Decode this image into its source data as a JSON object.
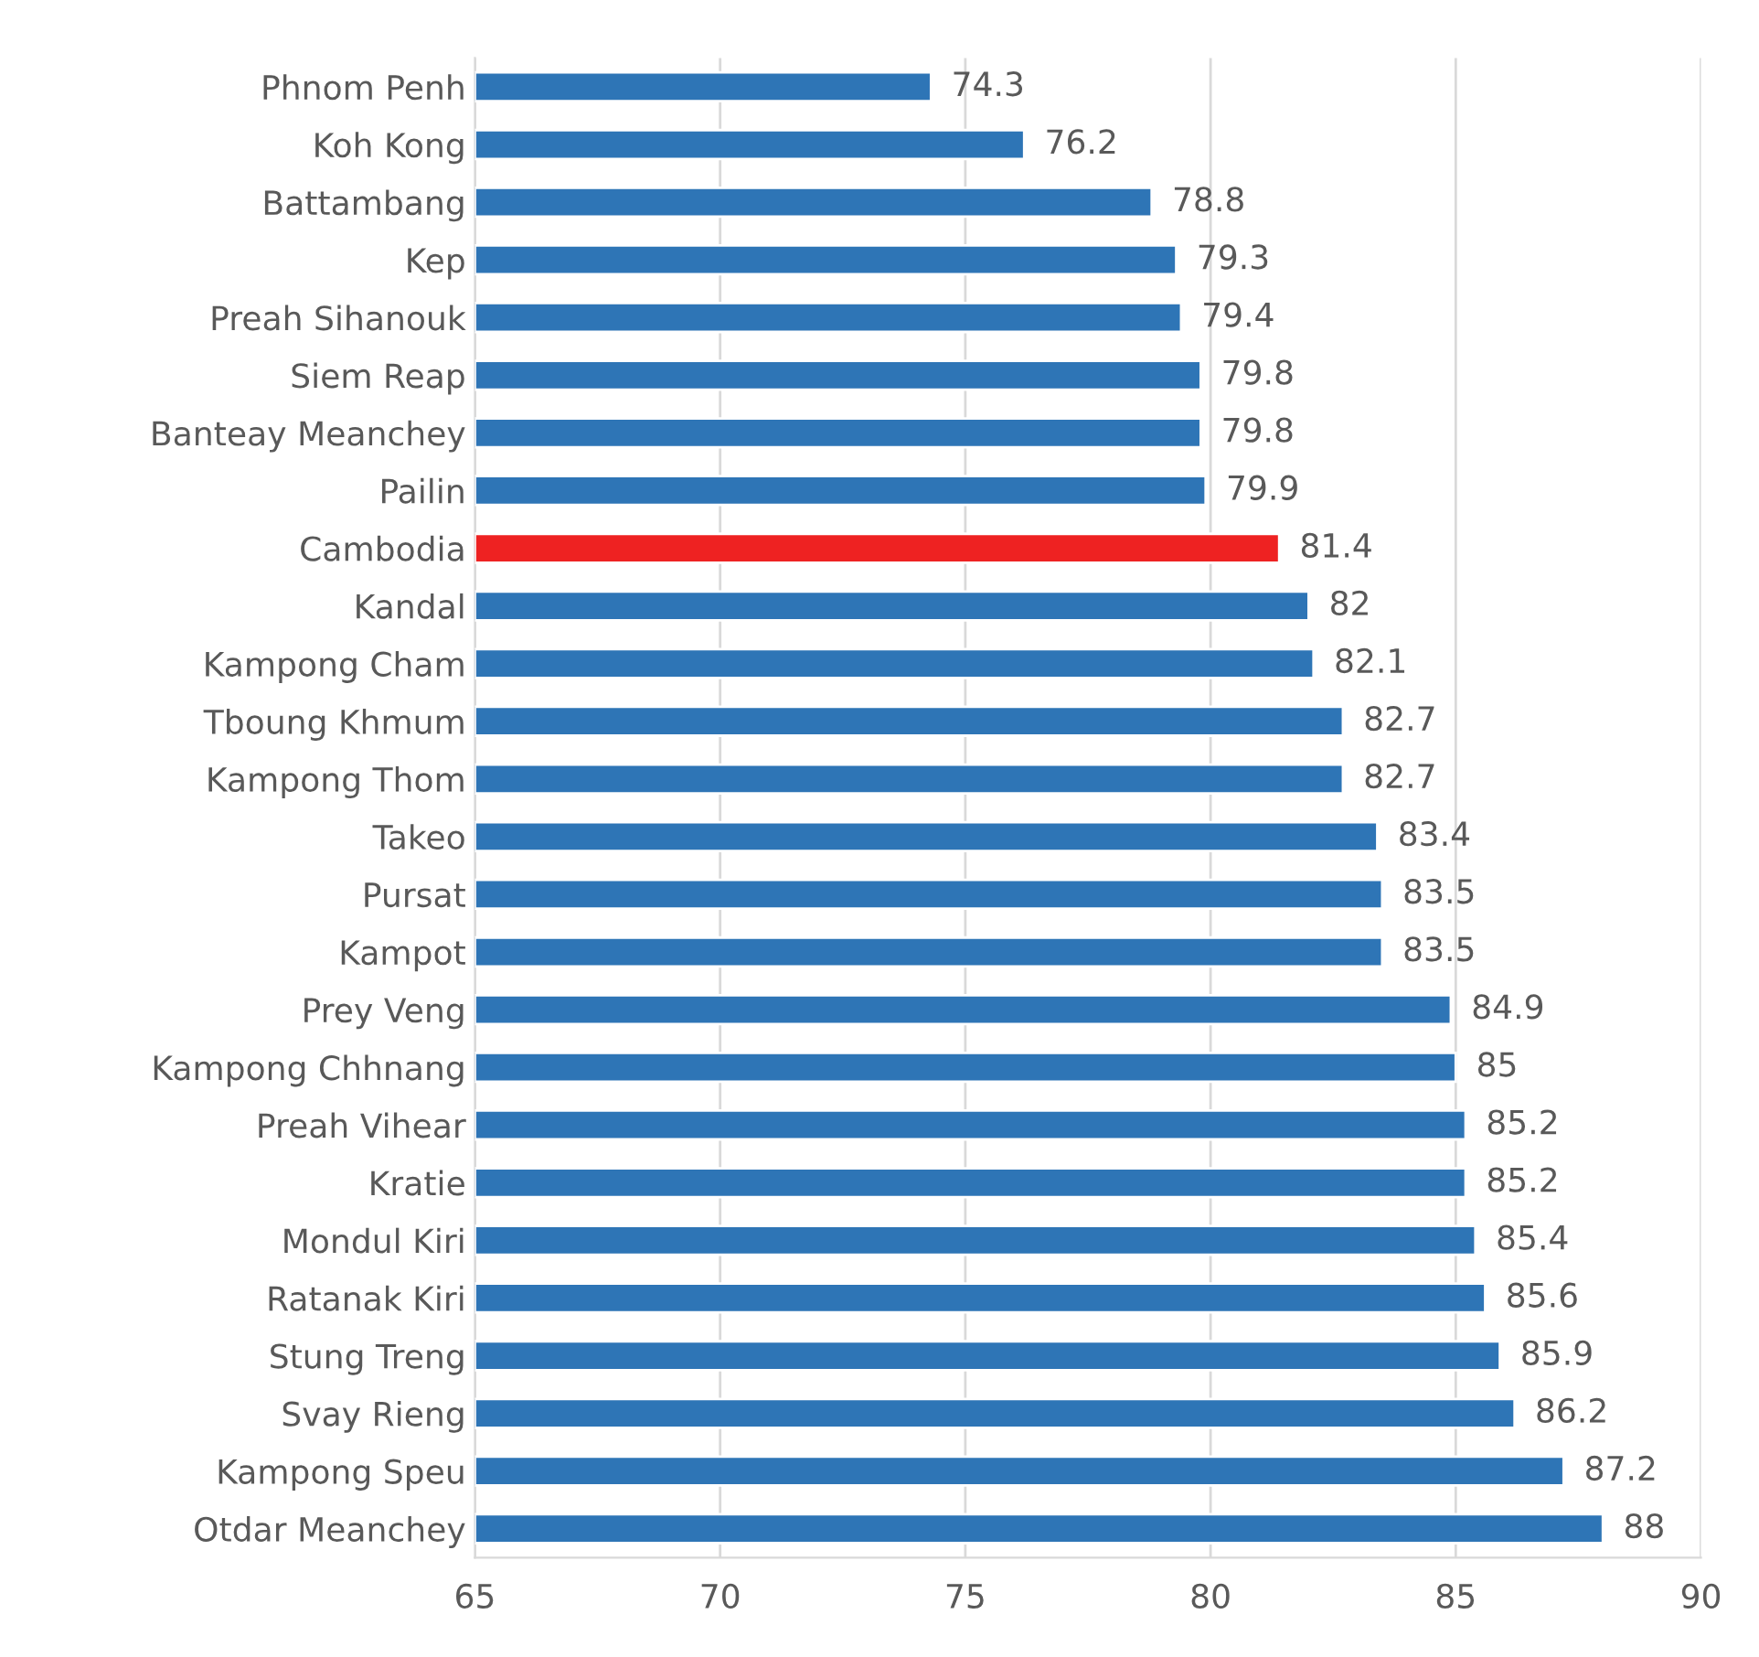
{
  "chart_data": {
    "type": "bar",
    "orientation": "horizontal",
    "categories": [
      "Phnom Penh",
      "Koh Kong",
      "Battambang",
      "Kep",
      "Preah Sihanouk",
      "Siem Reap",
      "Banteay Meanchey",
      "Pailin",
      "Cambodia",
      "Kandal",
      "Kampong Cham",
      "Tboung Khmum",
      "Kampong Thom",
      "Takeo",
      "Pursat",
      "Kampot",
      "Prey Veng",
      "Kampong Chhnang",
      "Preah Vihear",
      "Kratie",
      "Mondul Kiri",
      "Ratanak Kiri",
      "Stung Treng",
      "Svay Rieng",
      "Kampong Speu",
      "Otdar Meanchey"
    ],
    "values": [
      74.3,
      76.2,
      78.8,
      79.3,
      79.4,
      79.8,
      79.8,
      79.9,
      81.4,
      82,
      82.1,
      82.7,
      82.7,
      83.4,
      83.5,
      83.5,
      84.9,
      85,
      85.2,
      85.2,
      85.4,
      85.6,
      85.9,
      86.2,
      87.2,
      88
    ],
    "colors": [
      "#2e75b6",
      "#2e75b6",
      "#2e75b6",
      "#2e75b6",
      "#2e75b6",
      "#2e75b6",
      "#2e75b6",
      "#2e75b6",
      "#ee2222",
      "#2e75b6",
      "#2e75b6",
      "#2e75b6",
      "#2e75b6",
      "#2e75b6",
      "#2e75b6",
      "#2e75b6",
      "#2e75b6",
      "#2e75b6",
      "#2e75b6",
      "#2e75b6",
      "#2e75b6",
      "#2e75b6",
      "#2e75b6",
      "#2e75b6",
      "#2e75b6",
      "#2e75b6"
    ],
    "xlim": [
      65,
      90
    ],
    "xticks": [
      65,
      70,
      75,
      80,
      85,
      90
    ],
    "grid": "x",
    "data_labels": true
  }
}
